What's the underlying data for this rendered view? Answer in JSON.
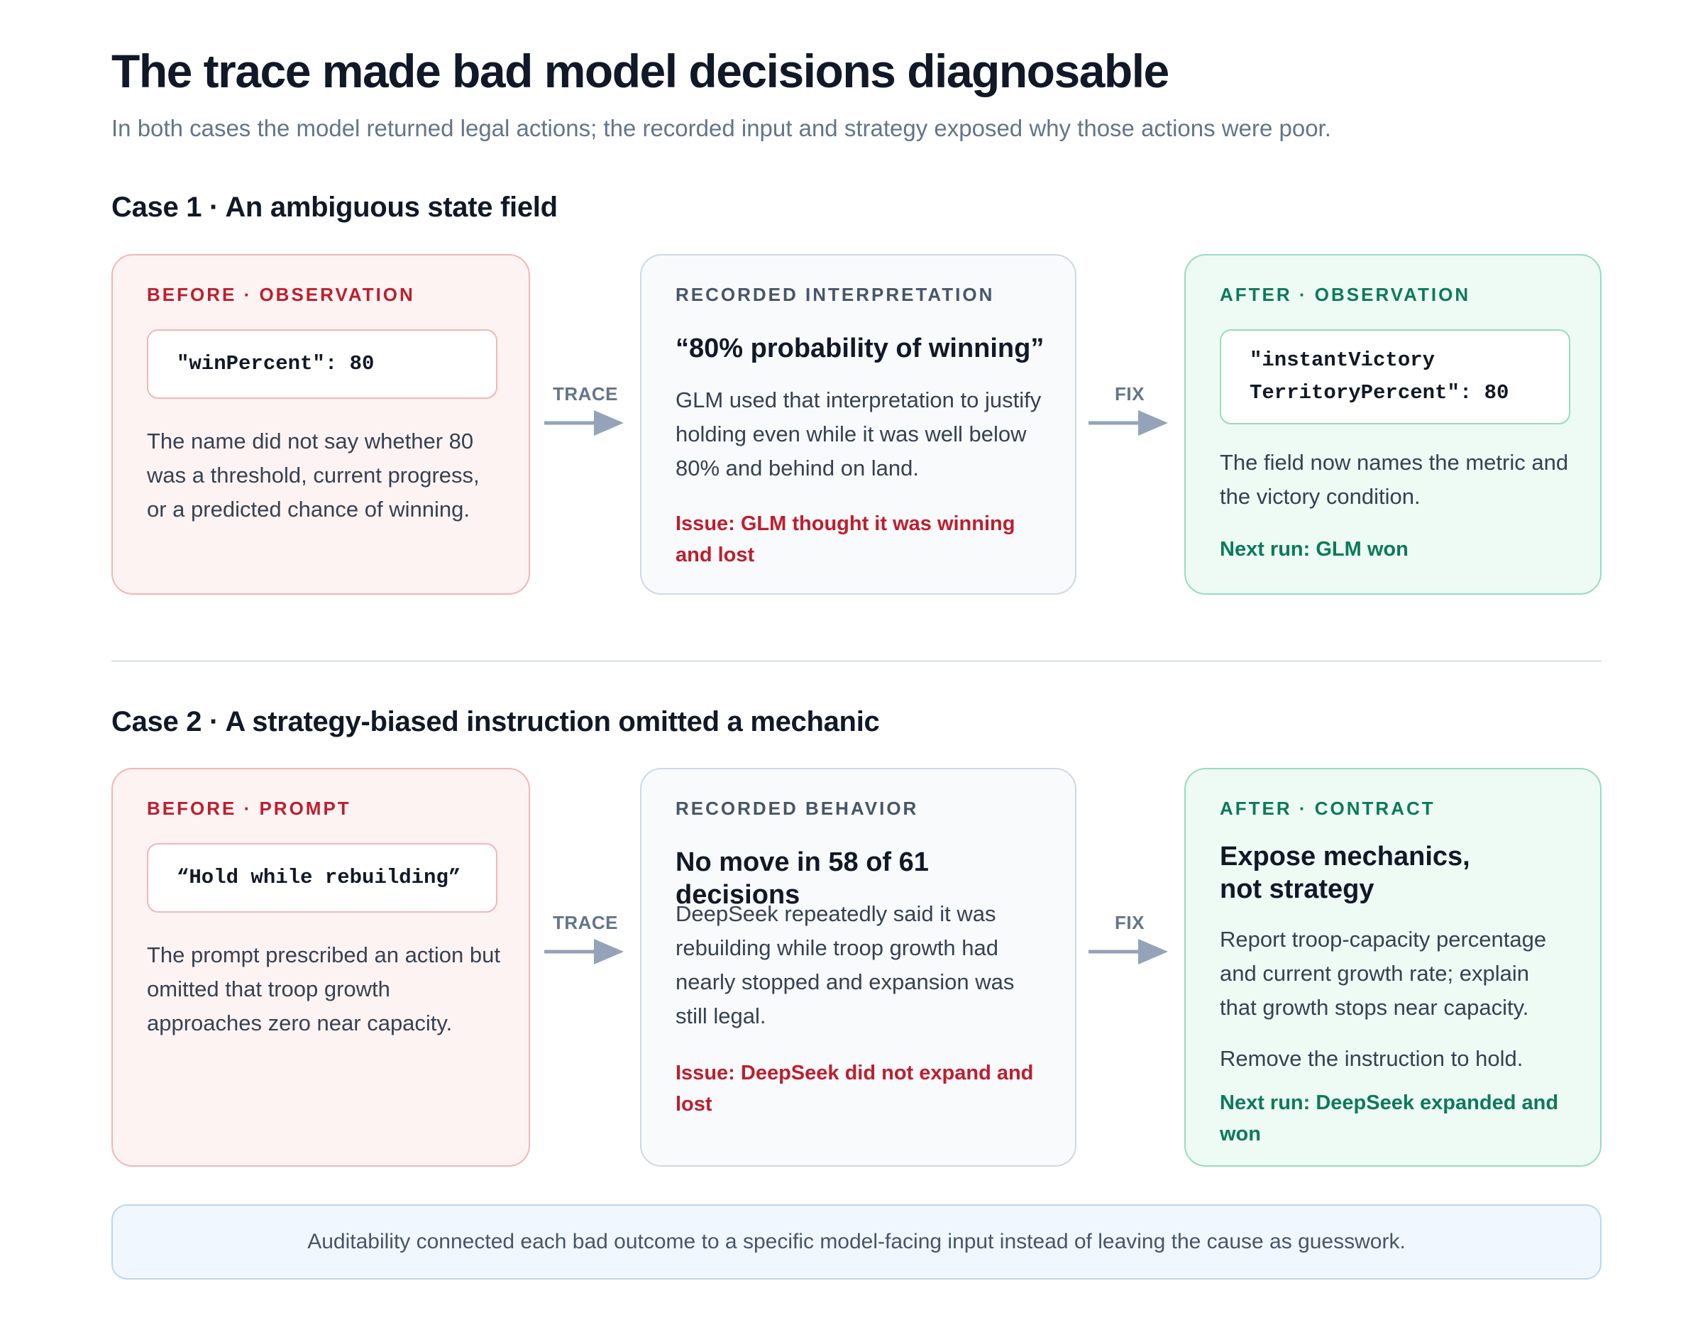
{
  "title": "The trace made bad model decisions diagnosable",
  "subtitle": "In both cases the model returned legal actions; the recorded input and strategy exposed why those actions were poor.",
  "cases": [
    {
      "heading": "Case 1 · An ambiguous state field",
      "before": {
        "kicker": "BEFORE · OBSERVATION",
        "code": [
          "\"winPercent\": 80"
        ],
        "text": "The name did not say whether 80 was a threshold, current progress, or a predicted chance of winning."
      },
      "trace_label": "TRACE",
      "middle": {
        "kicker": "RECORDED INTERPRETATION",
        "headline": "“80% probability of winning”",
        "text": "GLM used that interpretation to justify holding even while it was well below 80% and behind on land.",
        "issue": "Issue: GLM thought it was winning and lost"
      },
      "fix_label": "FIX",
      "after": {
        "kicker": "AFTER · OBSERVATION",
        "code": [
          "\"instantVictory",
          "TerritoryPercent\": 80"
        ],
        "text": "The field now names the metric and the victory condition.",
        "next": "Next run: GLM won"
      }
    },
    {
      "heading": "Case 2 · A strategy-biased instruction omitted a mechanic",
      "before": {
        "kicker": "BEFORE · PROMPT",
        "code": [
          "“Hold while rebuilding”"
        ],
        "text": "The prompt prescribed an action but omitted that troop growth approaches zero near capacity."
      },
      "trace_label": "TRACE",
      "middle": {
        "kicker": "RECORDED BEHAVIOR",
        "headline": "No move in 58 of 61 decisions",
        "text": "DeepSeek repeatedly said it was rebuilding while troop growth had nearly stopped and expansion was still legal.",
        "issue": "Issue: DeepSeek did not expand and lost"
      },
      "fix_label": "FIX",
      "after": {
        "kicker": "AFTER · CONTRACT",
        "headline_lines": [
          "Expose mechanics,",
          "not strategy"
        ],
        "text": "Report troop-capacity percentage and current growth rate; explain that growth stops near capacity.",
        "text2": "Remove the instruction to hold.",
        "next": "Next run: DeepSeek expanded and won"
      }
    }
  ],
  "footer": "Auditability connected each bad outcome to a specific model-facing input instead of leaving the cause as guesswork.",
  "colors": {
    "before_accent": "#be1e2d",
    "after_accent": "#0c7a5a",
    "arrow": "#94a3b8"
  }
}
